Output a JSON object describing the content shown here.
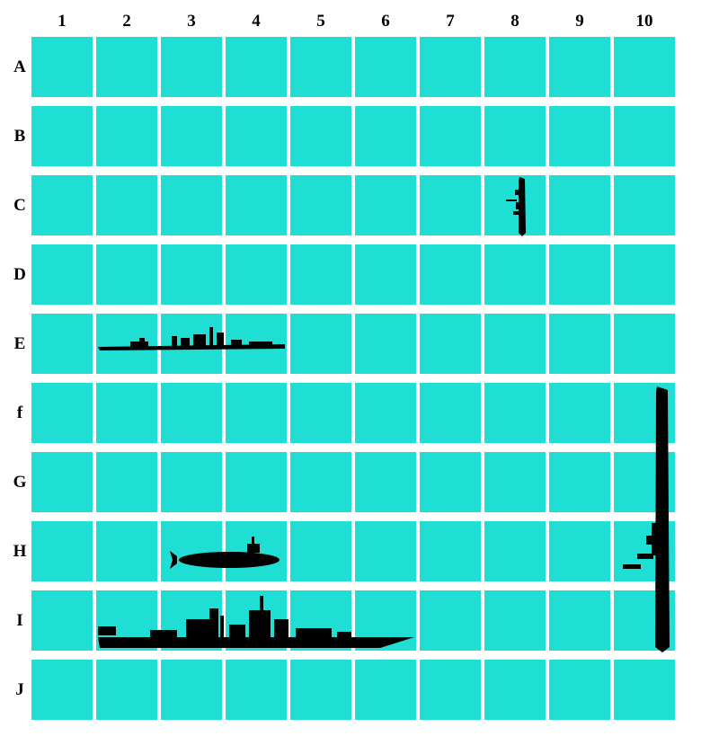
{
  "board": {
    "columns": [
      "1",
      "2",
      "3",
      "4",
      "5",
      "6",
      "7",
      "8",
      "9",
      "10"
    ],
    "rows": [
      "A",
      "B",
      "C",
      "D",
      "E",
      "f",
      "G",
      "H",
      "I",
      "J"
    ],
    "water_color": "#1fdfd4",
    "ship_color": "#000000"
  },
  "ships": [
    {
      "name": "patrol-boat",
      "orientation": "vertical",
      "start": "C8",
      "end": "C8"
    },
    {
      "name": "destroyer",
      "orientation": "horizontal",
      "start": "E2",
      "end": "E4"
    },
    {
      "name": "submarine",
      "orientation": "horizontal",
      "start": "H3",
      "end": "H4"
    },
    {
      "name": "battleship",
      "orientation": "horizontal",
      "start": "I2",
      "end": "I6"
    },
    {
      "name": "carrier",
      "orientation": "vertical",
      "start": "f10",
      "end": "I10"
    }
  ]
}
